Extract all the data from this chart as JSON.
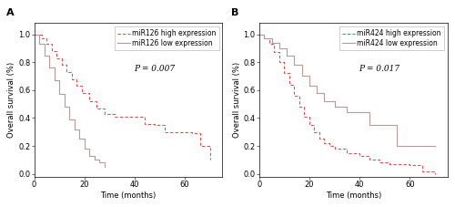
{
  "panel_A": {
    "label": "A",
    "pvalue": "P = 0.007",
    "xlabel": "Time (months)",
    "ylabel": "Overall survival (%)",
    "xlim": [
      0,
      75
    ],
    "ylim": [
      -0.02,
      1.08
    ],
    "xticks": [
      0,
      20,
      40,
      60
    ],
    "yticks": [
      0,
      0.2,
      0.4,
      0.6,
      0.8,
      1.0
    ],
    "high_label": "miR126 high expression",
    "low_label": "miR126 low expression",
    "high_x": [
      0,
      3,
      5,
      7,
      9,
      11,
      13,
      15,
      17,
      19,
      22,
      25,
      28,
      32,
      36,
      40,
      44,
      48,
      52,
      56,
      60,
      63,
      66,
      70
    ],
    "high_y": [
      1.0,
      0.97,
      0.93,
      0.88,
      0.83,
      0.78,
      0.73,
      0.68,
      0.63,
      0.58,
      0.52,
      0.47,
      0.43,
      0.41,
      0.41,
      0.41,
      0.36,
      0.35,
      0.3,
      0.3,
      0.3,
      0.29,
      0.2,
      0.1
    ],
    "low_x": [
      0,
      2,
      4,
      6,
      8,
      10,
      12,
      14,
      16,
      18,
      20,
      22,
      24,
      26,
      28
    ],
    "low_y": [
      1.0,
      0.93,
      0.85,
      0.76,
      0.67,
      0.57,
      0.48,
      0.39,
      0.32,
      0.25,
      0.18,
      0.13,
      0.1,
      0.08,
      0.05
    ]
  },
  "panel_B": {
    "label": "B",
    "pvalue": "P = 0.017",
    "xlabel": "Time (months)",
    "ylabel": "Overall survival (%)",
    "xlim": [
      0,
      75
    ],
    "ylim": [
      -0.02,
      1.08
    ],
    "xticks": [
      0,
      20,
      40,
      60
    ],
    "yticks": [
      0,
      0.2,
      0.4,
      0.6,
      0.8,
      1.0
    ],
    "high_label": "miR424 high expression",
    "low_label": "miR424 low expression",
    "high_x": [
      0,
      2,
      4,
      6,
      8,
      10,
      12,
      14,
      16,
      18,
      20,
      22,
      24,
      26,
      28,
      30,
      35,
      40,
      44,
      48,
      52,
      55,
      60,
      65,
      70
    ],
    "high_y": [
      1.0,
      0.97,
      0.93,
      0.87,
      0.8,
      0.72,
      0.64,
      0.56,
      0.48,
      0.41,
      0.35,
      0.3,
      0.25,
      0.22,
      0.2,
      0.18,
      0.15,
      0.13,
      0.1,
      0.08,
      0.07,
      0.07,
      0.06,
      0.02,
      0.0
    ],
    "low_x": [
      0,
      2,
      5,
      8,
      11,
      14,
      17,
      20,
      23,
      26,
      30,
      35,
      40,
      44,
      50,
      55,
      60,
      65,
      70
    ],
    "low_y": [
      1.0,
      0.97,
      0.94,
      0.9,
      0.85,
      0.78,
      0.7,
      0.63,
      0.58,
      0.52,
      0.48,
      0.44,
      0.44,
      0.35,
      0.35,
      0.2,
      0.2,
      0.2,
      0.2
    ]
  },
  "high_color": "#d45555",
  "low_color": "#b89898",
  "bg_color": "#ffffff",
  "panel_bg": "#ffffff",
  "fontsize": 6,
  "pvalue_fontsize": 6.5,
  "label_fontsize": 8,
  "tick_fontsize": 6
}
